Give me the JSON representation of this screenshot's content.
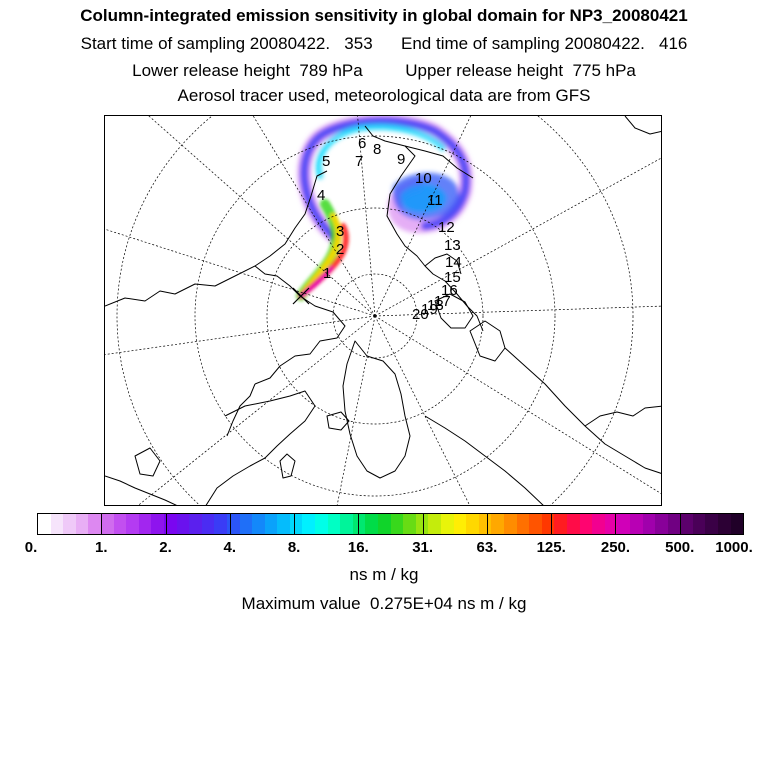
{
  "header": {
    "title": "Column-integrated emission sensitivity in global domain for NP3_20080421",
    "start_label": "Start time of sampling 20080422.",
    "start_value": "353",
    "end_label": "End time of sampling 20080422.",
    "end_value": "416",
    "lower_label": "Lower release height",
    "lower_value": "789 hPa",
    "upper_label": "Upper release height",
    "upper_value": "775 hPa",
    "note": "Aerosol tracer used, meteorological data are from GFS"
  },
  "map": {
    "projection": "north polar stereographic",
    "step_labels": [
      "1",
      "2",
      "3",
      "4",
      "5",
      "6",
      "7",
      "8",
      "9",
      "10",
      "11",
      "12",
      "13",
      "14",
      "15",
      "16",
      "17",
      "18",
      "19",
      "20"
    ]
  },
  "colorbar": {
    "tick_labels": [
      "0.",
      "1.",
      "2.",
      "4.",
      "8.",
      "16.",
      "31.",
      "63.",
      "125.",
      "250.",
      "500.",
      "1000."
    ],
    "colors": [
      "#ffffff",
      "#f6e4fb",
      "#efc9f8",
      "#e8aef5",
      "#dd88f1",
      "#d06cee",
      "#c24ff0",
      "#b43bf2",
      "#a226ef",
      "#8e14ee",
      "#7a06f0",
      "#6a12ee",
      "#5b20ee",
      "#4b2cf3",
      "#3a3cf6",
      "#2b55f7",
      "#1f6ff8",
      "#1388fa",
      "#0aa2fb",
      "#05bcfc",
      "#00d8fd",
      "#00f0ff",
      "#00ffe8",
      "#00ffc4",
      "#00f49a",
      "#00e870",
      "#00dc48",
      "#10d42a",
      "#38d81c",
      "#68dc14",
      "#98e410",
      "#c4ec0c",
      "#e8f40a",
      "#ffee04",
      "#ffd800",
      "#ffc000",
      "#ffa800",
      "#ff8c00",
      "#ff7000",
      "#ff5400",
      "#ff3800",
      "#ff1c20",
      "#ff0c48",
      "#ff0470",
      "#f20090",
      "#e600a8",
      "#d000b8",
      "#b800b4",
      "#a000ac",
      "#880099",
      "#700082",
      "#5c006c",
      "#4a0058",
      "#3a0046",
      "#2c0034",
      "#200028"
    ],
    "unit": "ns m / kg",
    "max_label": "Maximum value",
    "max_value": "0.275E+04 ns m / kg"
  },
  "plume_colors": {
    "low": "#00d8fd",
    "mid": "#3a3cf6",
    "edge": "#d06cee",
    "core_green": "#38d81c",
    "core_yellow": "#ffd800",
    "core_red": "#ff1c20",
    "core_magenta": "#e600a8"
  }
}
